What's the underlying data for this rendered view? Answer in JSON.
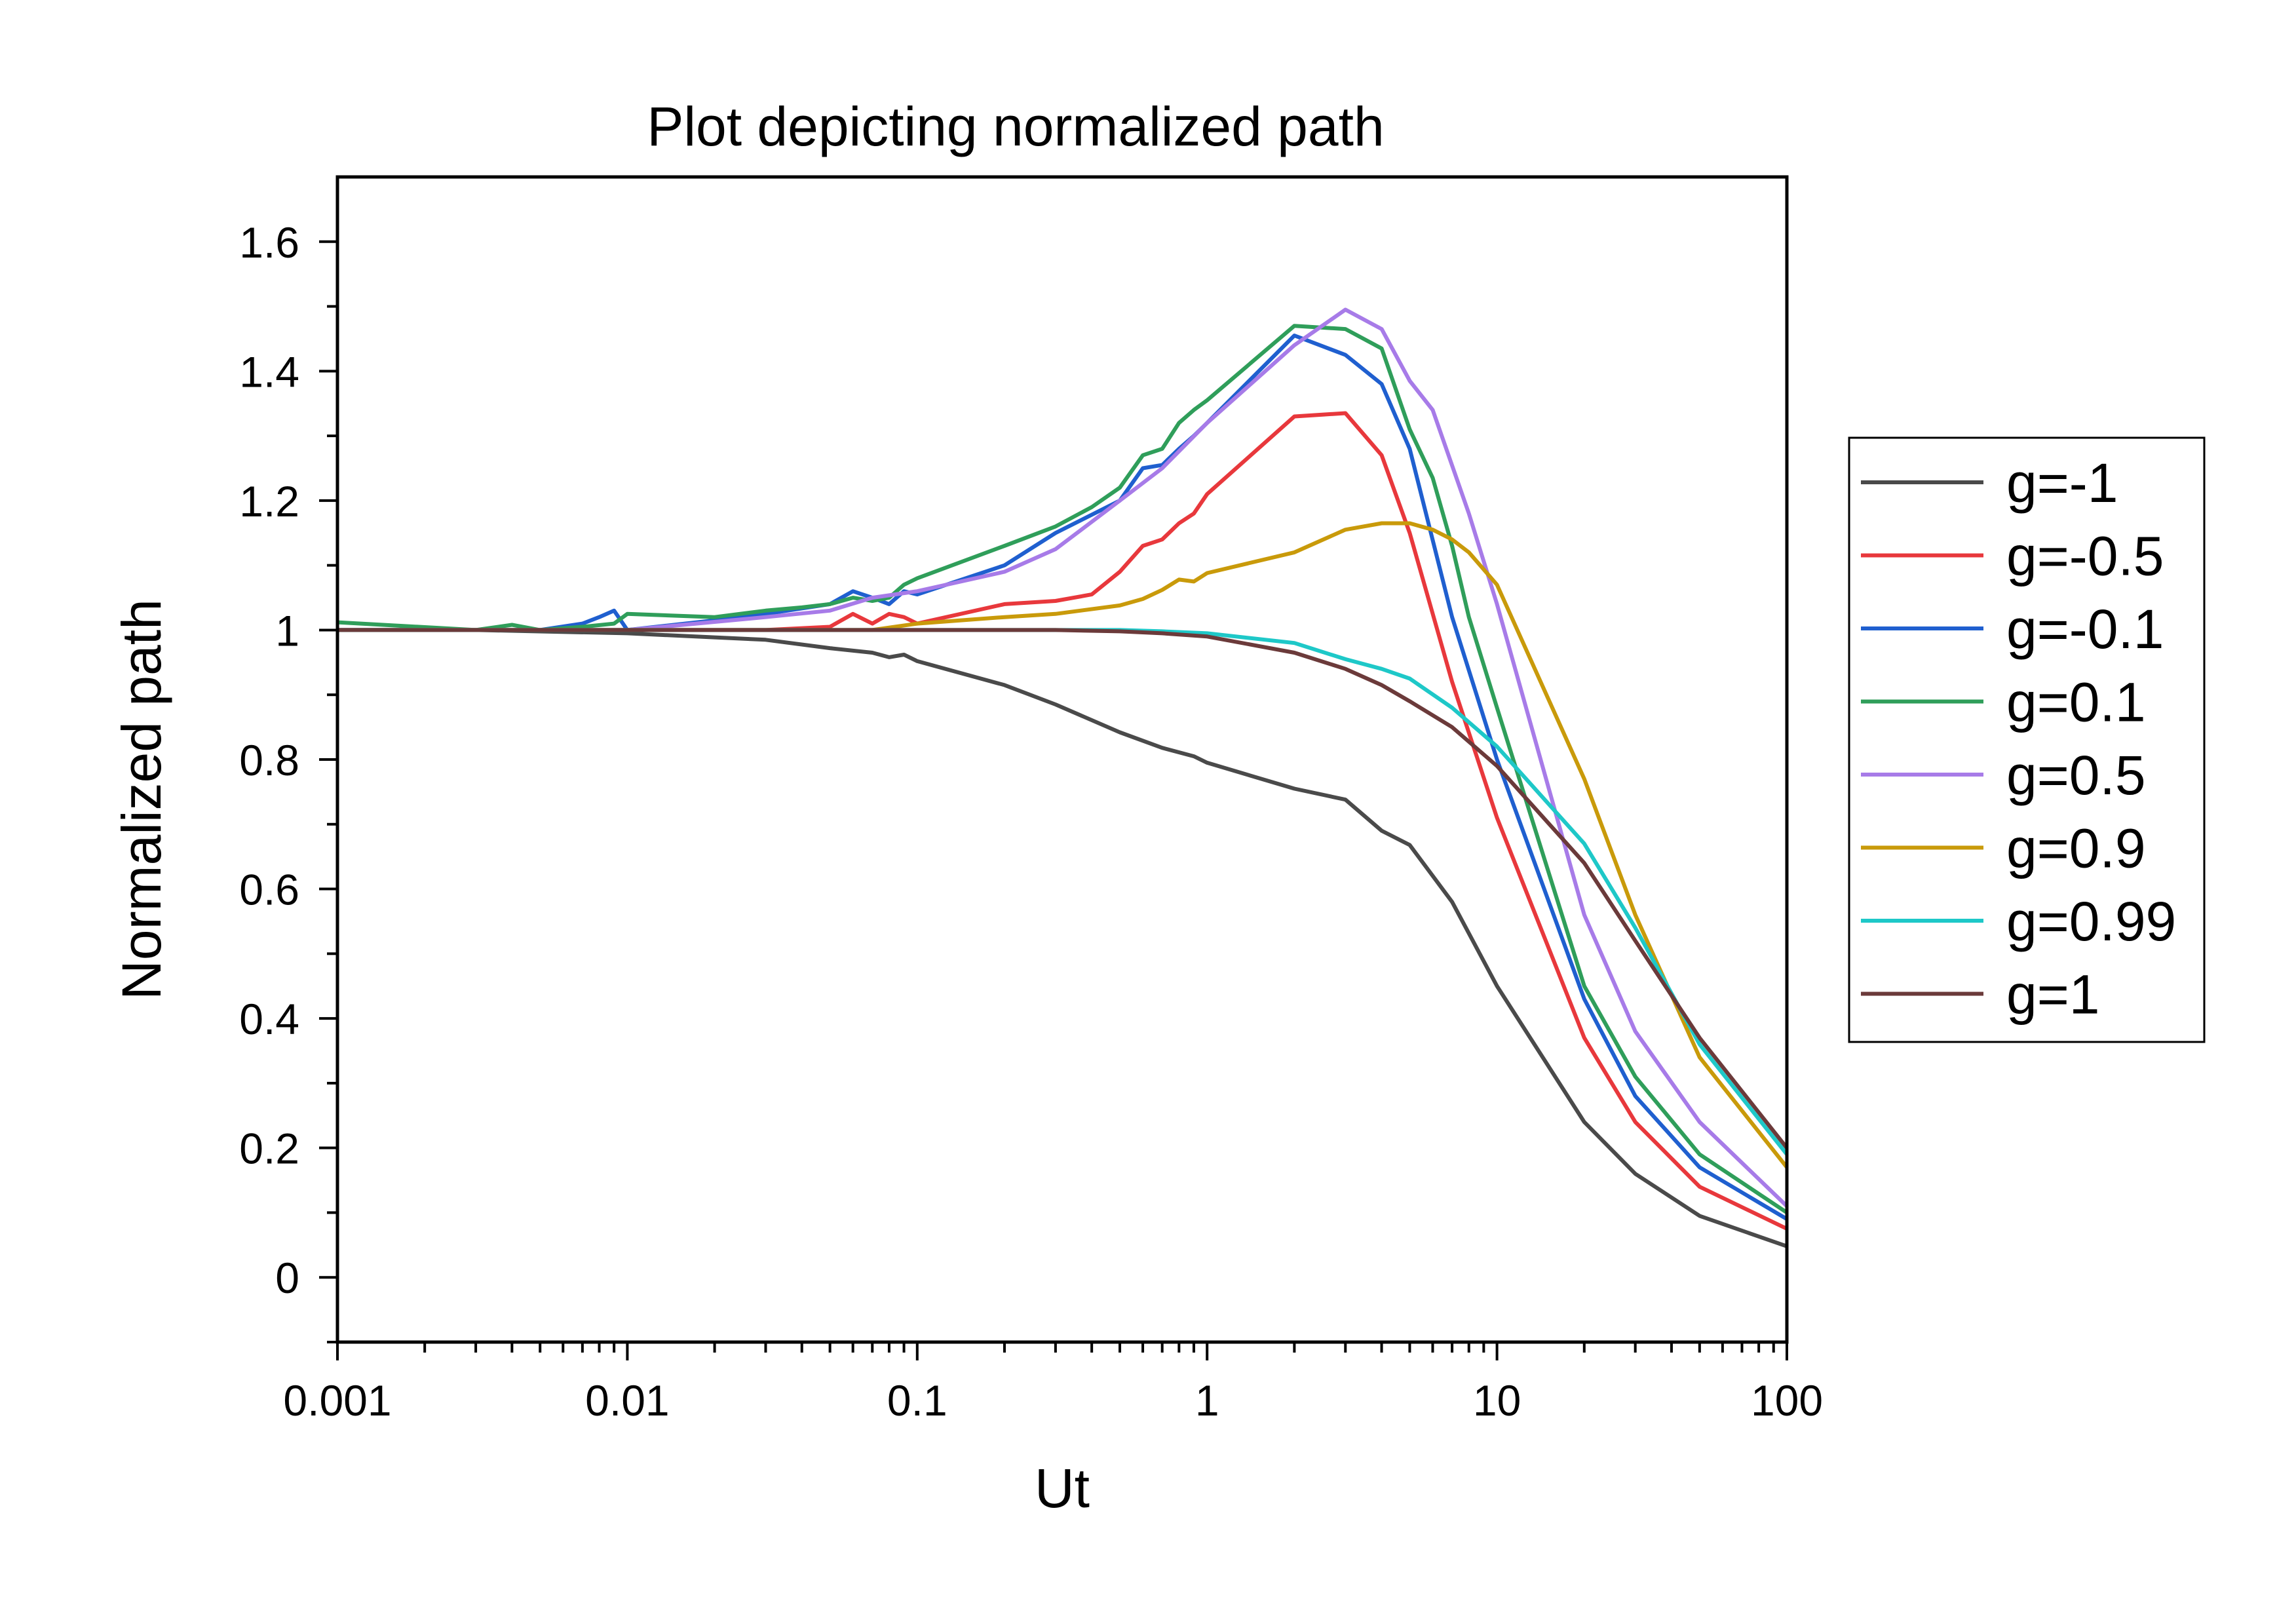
{
  "chart_data": {
    "type": "line",
    "title": "Plot depicting normalized path",
    "xlabel": "Ut",
    "ylabel": "Normalized path",
    "x_scale": "log",
    "xlim": [
      0.001,
      100
    ],
    "ylim": [
      -0.1,
      1.7
    ],
    "x_ticks": [
      {
        "value": 0.001,
        "label": "0.001"
      },
      {
        "value": 0.01,
        "label": "0.01"
      },
      {
        "value": 0.1,
        "label": "0.1"
      },
      {
        "value": 1,
        "label": "1"
      },
      {
        "value": 10,
        "label": "10"
      },
      {
        "value": 100,
        "label": "100"
      }
    ],
    "y_ticks": [
      {
        "value": 0,
        "label": "0"
      },
      {
        "value": 0.2,
        "label": "0.2"
      },
      {
        "value": 0.4,
        "label": "0.4"
      },
      {
        "value": 0.6,
        "label": "0.6"
      },
      {
        "value": 0.8,
        "label": "0.8"
      },
      {
        "value": 1.0,
        "label": "1"
      },
      {
        "value": 1.2,
        "label": "1.2"
      },
      {
        "value": 1.4,
        "label": "1.4"
      },
      {
        "value": 1.6,
        "label": "1.6"
      }
    ],
    "grid": false,
    "legend_position": "right",
    "series": [
      {
        "name": "g=-1",
        "color": "#4a4a4a",
        "x": [
          0.001,
          0.003,
          0.01,
          0.03,
          0.05,
          0.07,
          0.08,
          0.09,
          0.1,
          0.2,
          0.3,
          0.5,
          0.7,
          0.9,
          1,
          2,
          3,
          4,
          5,
          7,
          10,
          20,
          30,
          50,
          100
        ],
        "y": [
          1.0,
          1.0,
          0.995,
          0.985,
          0.972,
          0.965,
          0.958,
          0.962,
          0.952,
          0.915,
          0.885,
          0.842,
          0.818,
          0.805,
          0.795,
          0.755,
          0.738,
          0.69,
          0.668,
          0.58,
          0.45,
          0.24,
          0.16,
          0.095,
          0.048
        ]
      },
      {
        "name": "g=-0.5",
        "color": "#e8383c",
        "x": [
          0.001,
          0.01,
          0.03,
          0.05,
          0.06,
          0.07,
          0.08,
          0.09,
          0.1,
          0.2,
          0.3,
          0.4,
          0.5,
          0.6,
          0.7,
          0.8,
          0.9,
          1,
          2,
          3,
          4,
          5,
          7,
          10,
          20,
          30,
          50,
          100
        ],
        "y": [
          1.0,
          1.0,
          1.0,
          1.005,
          1.025,
          1.01,
          1.025,
          1.02,
          1.01,
          1.04,
          1.045,
          1.055,
          1.09,
          1.13,
          1.14,
          1.165,
          1.18,
          1.21,
          1.33,
          1.335,
          1.27,
          1.15,
          0.92,
          0.71,
          0.37,
          0.24,
          0.14,
          0.075
        ]
      },
      {
        "name": "g=-0.1",
        "color": "#1f5fcf",
        "x": [
          0.001,
          0.003,
          0.005,
          0.007,
          0.008,
          0.009,
          0.01,
          0.02,
          0.03,
          0.05,
          0.06,
          0.07,
          0.08,
          0.09,
          0.1,
          0.2,
          0.3,
          0.5,
          0.6,
          0.7,
          0.8,
          0.9,
          1,
          2,
          3,
          4,
          5,
          7,
          10,
          20,
          30,
          50,
          100
        ],
        "y": [
          1.0,
          1.0,
          1.0,
          1.01,
          1.02,
          1.03,
          1.0,
          1.015,
          1.025,
          1.04,
          1.06,
          1.05,
          1.04,
          1.06,
          1.055,
          1.1,
          1.15,
          1.2,
          1.25,
          1.255,
          1.28,
          1.3,
          1.32,
          1.455,
          1.425,
          1.38,
          1.28,
          1.02,
          0.8,
          0.43,
          0.28,
          0.17,
          0.09
        ]
      },
      {
        "name": "g=0.1",
        "color": "#2f9e5a",
        "x": [
          0.001,
          0.003,
          0.004,
          0.005,
          0.007,
          0.009,
          0.01,
          0.02,
          0.03,
          0.04,
          0.05,
          0.06,
          0.07,
          0.08,
          0.09,
          0.1,
          0.2,
          0.3,
          0.4,
          0.5,
          0.6,
          0.7,
          0.8,
          0.9,
          1,
          2,
          3,
          4,
          5,
          6,
          7,
          8,
          10,
          20,
          30,
          50,
          100
        ],
        "y": [
          1.012,
          1.0,
          1.008,
          1.0,
          1.005,
          1.01,
          1.025,
          1.02,
          1.03,
          1.035,
          1.04,
          1.05,
          1.045,
          1.05,
          1.07,
          1.08,
          1.13,
          1.16,
          1.19,
          1.22,
          1.27,
          1.28,
          1.32,
          1.34,
          1.355,
          1.47,
          1.465,
          1.435,
          1.31,
          1.235,
          1.13,
          1.02,
          0.88,
          0.45,
          0.31,
          0.19,
          0.1
        ]
      },
      {
        "name": "g=0.5",
        "color": "#a77be8",
        "x": [
          0.001,
          0.01,
          0.03,
          0.05,
          0.07,
          0.1,
          0.2,
          0.3,
          0.5,
          0.7,
          1,
          2,
          3,
          4,
          5,
          6,
          8,
          10,
          20,
          30,
          50,
          100
        ],
        "y": [
          1.0,
          1.0,
          1.02,
          1.03,
          1.05,
          1.06,
          1.09,
          1.125,
          1.2,
          1.25,
          1.32,
          1.44,
          1.495,
          1.465,
          1.385,
          1.34,
          1.18,
          1.04,
          0.56,
          0.38,
          0.24,
          0.11
        ]
      },
      {
        "name": "g=0.9",
        "color": "#c99a0a",
        "x": [
          0.001,
          0.01,
          0.03,
          0.05,
          0.07,
          0.1,
          0.2,
          0.3,
          0.5,
          0.6,
          0.7,
          0.8,
          0.9,
          1,
          2,
          3,
          4,
          5,
          6,
          7,
          8,
          10,
          20,
          30,
          50,
          100
        ],
        "y": [
          1.0,
          1.0,
          1.0,
          1.0,
          1.0,
          1.01,
          1.02,
          1.025,
          1.038,
          1.048,
          1.062,
          1.078,
          1.075,
          1.088,
          1.12,
          1.155,
          1.165,
          1.165,
          1.155,
          1.14,
          1.12,
          1.07,
          0.77,
          0.56,
          0.34,
          0.17
        ]
      },
      {
        "name": "g=0.99",
        "color": "#1ec8c8",
        "x": [
          0.001,
          0.01,
          0.1,
          0.3,
          0.5,
          0.7,
          1,
          2,
          3,
          4,
          5,
          7,
          10,
          20,
          30,
          50,
          100
        ],
        "y": [
          1.0,
          1.0,
          1.0,
          1.0,
          1.0,
          0.998,
          0.995,
          0.98,
          0.955,
          0.94,
          0.925,
          0.88,
          0.82,
          0.67,
          0.54,
          0.36,
          0.19
        ]
      },
      {
        "name": "g=1",
        "color": "#6b3a3a",
        "x": [
          0.001,
          0.01,
          0.1,
          0.3,
          0.5,
          0.7,
          1,
          2,
          3,
          4,
          5,
          7,
          10,
          20,
          30,
          50,
          100
        ],
        "y": [
          1.0,
          1.0,
          1.0,
          1.0,
          0.998,
          0.995,
          0.99,
          0.965,
          0.94,
          0.915,
          0.89,
          0.85,
          0.79,
          0.64,
          0.52,
          0.37,
          0.2
        ]
      }
    ]
  }
}
